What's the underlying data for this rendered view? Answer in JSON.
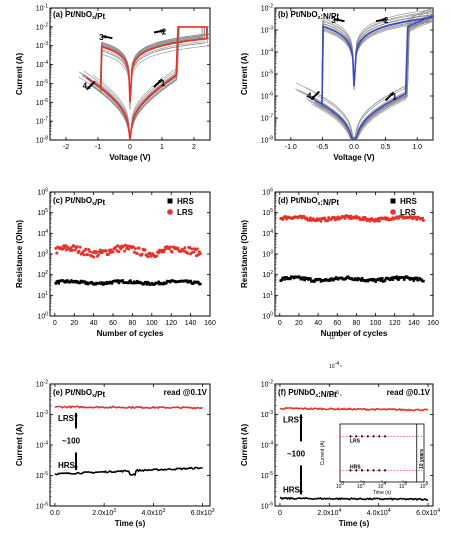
{
  "chart_data": [
    {
      "id": "a",
      "type": "line",
      "title": "(a) Pt/NbOx/Pt",
      "xlabel": "Voltage (V)",
      "ylabel": "Current (A)",
      "xlim": [
        -2.5,
        2.5
      ],
      "ylim_log10": [
        -8,
        -1
      ],
      "yscale": "log",
      "xticks": [
        "-2",
        "-1",
        "0",
        "1",
        "2"
      ],
      "yticks": [
        "10^-8",
        "10^-7",
        "10^-6",
        "10^-5",
        "10^-4",
        "10^-3",
        "10^-2",
        "10^-1"
      ],
      "compliance_A": 0.01,
      "curve_color": "#e8312a",
      "cycle_color": "#8a8a8a",
      "arrows": [
        {
          "label": "1",
          "x": 0.75,
          "y_log10": -5.2,
          "dir": "up-right"
        },
        {
          "label": "2",
          "x": 0.75,
          "y_log10": -2.3,
          "dir": "right"
        },
        {
          "label": "3",
          "x": -0.55,
          "y_log10": -2.6,
          "dir": "left"
        },
        {
          "label": "4",
          "x": -1.1,
          "y_log10": -4.9,
          "dir": "down-left"
        }
      ],
      "series": [
        {
          "values_x": [
            -2.2,
            -1.6,
            -1.1,
            -0.6,
            -0.2,
            0,
            0.2,
            0.6,
            1.1,
            1.5,
            2.0
          ],
          "values_y_log10": [
            -2.3,
            -3.0,
            -3.4,
            -3.9,
            -4.8,
            -8,
            -4.9,
            -3.7,
            -3.1,
            -2.0,
            -2.0
          ]
        }
      ]
    },
    {
      "id": "b",
      "type": "line",
      "title": "(b) Pt/NbOx:N/Pt",
      "xlabel": "Voltage (V)",
      "ylabel": "Current (A)",
      "xlim": [
        -1.25,
        1.25
      ],
      "ylim_log10": [
        -8,
        -2
      ],
      "yscale": "log",
      "xticks": [
        "-1.0",
        "-0.5",
        "0.0",
        "0.5",
        "1.0"
      ],
      "yticks": [
        "10^-8",
        "10^-7",
        "10^-6",
        "10^-5",
        "10^-4",
        "10^-3",
        "10^-2"
      ],
      "compliance_A": 0.01,
      "curve_color": "#3a4bc4",
      "cycle_color": "#8a8a8a",
      "arrows": [
        {
          "label": "1",
          "x": 0.5,
          "y_log10": -6.2,
          "dir": "up-right"
        },
        {
          "label": "2",
          "x": 0.35,
          "y_log10": -2.6,
          "dir": "right"
        },
        {
          "label": "3",
          "x": -0.15,
          "y_log10": -2.6,
          "dir": "left"
        },
        {
          "label": "4",
          "x": -0.55,
          "y_log10": -5.8,
          "dir": "down-left"
        }
      ]
    },
    {
      "id": "c",
      "type": "scatter",
      "title": "(c) Pt/NbOx/Pt",
      "xlabel": "Number of cycles",
      "ylabel": "Resistance (Ohm)",
      "xlim": [
        -5,
        160
      ],
      "ylim_log10": [
        0,
        6
      ],
      "yscale": "log",
      "xticks": [
        "0",
        "20",
        "40",
        "60",
        "80",
        "100",
        "120",
        "140",
        "160"
      ],
      "yticks": [
        "10^0",
        "10^1",
        "10^2",
        "10^3",
        "10^4",
        "10^5",
        "10^6"
      ],
      "series": [
        {
          "name": "HRS",
          "color": "#000000",
          "marker": "square",
          "x_range": [
            1,
            150
          ],
          "mean_log10": 1.62,
          "spread": 0.08
        },
        {
          "name": "LRS",
          "color": "#e8312a",
          "marker": "circle",
          "x_range": [
            1,
            150
          ],
          "mean_log10": 3.15,
          "spread": 0.22
        }
      ]
    },
    {
      "id": "d",
      "type": "scatter",
      "title": "(d) Pt/NbOx:N/Pt",
      "xlabel": "Number of cycles",
      "ylabel": "Resistance (Ohm)",
      "xlim": [
        -5,
        160
      ],
      "ylim_log10": [
        0,
        6
      ],
      "yscale": "log",
      "xticks": [
        "0",
        "20",
        "40",
        "60",
        "80",
        "100",
        "120",
        "140",
        "160"
      ],
      "yticks": [
        "10^0",
        "10^1",
        "10^2",
        "10^3",
        "10^4",
        "10^5",
        "10^6"
      ],
      "series": [
        {
          "name": "HRS",
          "color": "#000000",
          "marker": "square",
          "x_range": [
            1,
            150
          ],
          "mean_log10": 1.78,
          "spread": 0.1
        },
        {
          "name": "LRS",
          "color": "#e8312a",
          "marker": "circle",
          "x_range": [
            1,
            150
          ],
          "mean_log10": 4.72,
          "spread": 0.1
        }
      ]
    },
    {
      "id": "e",
      "type": "line",
      "title": "(e) Pt/NbOx/Pt",
      "read_note": "read @0.1V",
      "xlabel": "Time (s)",
      "ylabel": "Current (A)",
      "xlim": [
        -200,
        6300
      ],
      "ylim_log10": [
        -6,
        -2
      ],
      "yscale": "log",
      "xticks": [
        "0.0",
        "2.0x10^3",
        "4.0x10^3",
        "6.0x10^3"
      ],
      "yticks": [
        "10^-6",
        "10^-5",
        "10^-4",
        "10^-3",
        "10^-2"
      ],
      "labels": {
        "lrs": "LRS",
        "hrs": "HRS",
        "ratio": "~100"
      },
      "series": [
        {
          "name": "LRS",
          "color": "#e8312a",
          "x": [
            0,
            6000
          ],
          "y_log10": [
            -2.75,
            -2.78
          ]
        },
        {
          "name": "HRS",
          "color": "#000000",
          "x": [
            0,
            6000
          ],
          "y_log10": [
            -4.95,
            -4.75
          ]
        }
      ]
    },
    {
      "id": "f",
      "type": "line",
      "title": "(f) Pt/NbOx:N/Pt",
      "read_note": "read @0.1V",
      "xlabel": "Time (s)",
      "ylabel": "Current (A)",
      "xlim": [
        -2000,
        62000
      ],
      "ylim_log10": [
        -6,
        -2
      ],
      "yscale": "log",
      "xticks": [
        "0",
        "2.0x10^4",
        "4.0x10^4",
        "6.0x10^4"
      ],
      "yticks": [
        "10^-6",
        "10^-5",
        "10^-4",
        "10^-3",
        "10^-2"
      ],
      "labels": {
        "lrs": "LRS",
        "hrs": "HRS",
        "ratio": "~100"
      },
      "series": [
        {
          "name": "LRS",
          "color": "#e8312a",
          "x": [
            0,
            60000
          ],
          "y_log10": [
            -2.8,
            -2.85
          ]
        },
        {
          "name": "HRS",
          "color": "#000000",
          "x": [
            0,
            60000
          ],
          "y_log10": [
            -5.75,
            -5.78
          ]
        }
      ],
      "inset": {
        "xlabel": "Time (s)",
        "ylabel": "Current (A)",
        "xticks": [
          "10^0",
          "10^2",
          "10^4",
          "10^6",
          "10^8"
        ],
        "yticks": [
          "10^-6",
          "10^-4",
          "10^-2"
        ],
        "lrs_label": "LRS",
        "hrs_label": "HRS",
        "years_label": "10 years"
      }
    }
  ]
}
